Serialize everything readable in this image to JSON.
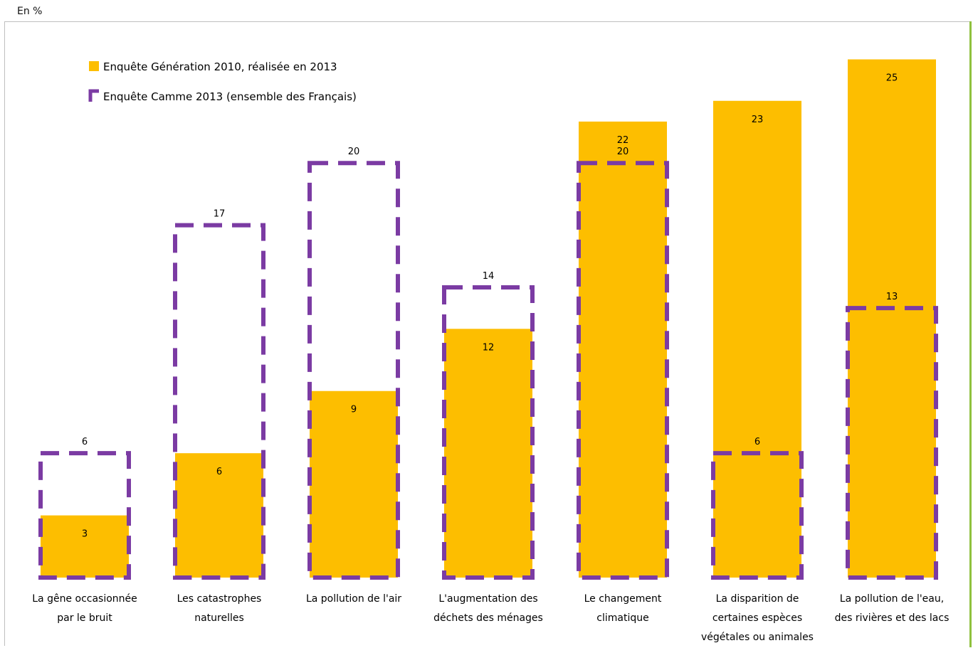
{
  "unit_label": "En %",
  "colors": {
    "generation": "#FDBE00",
    "camme": "#7B3BA3"
  },
  "chart_data": {
    "type": "bar",
    "title": "",
    "ylabel": "En %",
    "ylim": [
      0,
      25.6
    ],
    "legend_position": "top-left",
    "categories": [
      [
        "La gêne occasionnée",
        "par le bruit"
      ],
      [
        "Les catastrophes",
        "naturelles"
      ],
      [
        "La pollution de l'air"
      ],
      [
        "L'augmentation des",
        "déchets des ménages"
      ],
      [
        "Le changement",
        "climatique"
      ],
      [
        "La disparition de",
        "certaines espèces",
        "végétales ou animales"
      ],
      [
        "La pollution de l'eau,",
        "des rivières et des lacs"
      ]
    ],
    "series": [
      {
        "name": "Enquête Génération 2010, réalisée en 2013",
        "style": "solid",
        "values": [
          3,
          6,
          9,
          12,
          22,
          23,
          25
        ]
      },
      {
        "name": "Enquête Camme 2013 (ensemble des Français)",
        "style": "dashed-outline",
        "values": [
          6,
          17,
          20,
          14,
          20,
          6,
          13
        ]
      }
    ]
  }
}
